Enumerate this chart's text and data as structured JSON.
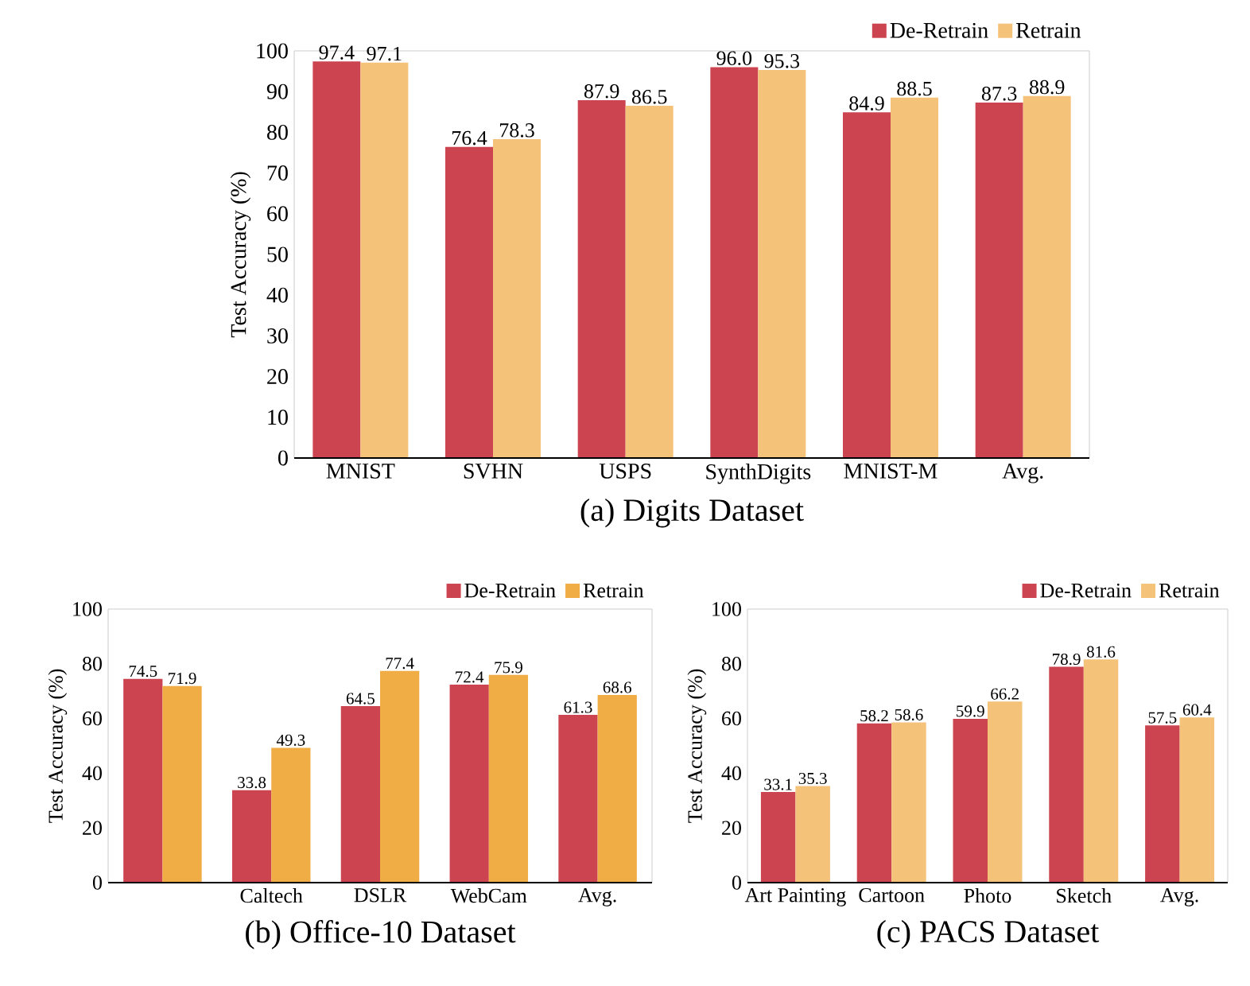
{
  "chart_data": [
    {
      "type": "bar",
      "title": "(a) Digits Dataset",
      "ylabel": "Test Accuracy (%)",
      "categories": [
        "MNIST",
        "SVHN",
        "USPS",
        "SynthDigits",
        "MNIST-M",
        "Avg."
      ],
      "series": [
        {
          "name": "De-Retrain",
          "color": "#cc4450",
          "values": [
            97.4,
            76.4,
            87.9,
            96.0,
            84.9,
            87.3
          ],
          "value_labels": [
            "97.4",
            "76.4",
            "87.9",
            "96.0",
            "84.9",
            "87.3"
          ]
        },
        {
          "name": "Retrain",
          "color": "#f5c27a",
          "values": [
            97.1,
            78.3,
            86.5,
            95.3,
            88.5,
            88.9
          ],
          "value_labels": [
            "97.1",
            "78.3",
            "86.5",
            "95.3",
            "88.5",
            "88.9"
          ]
        }
      ],
      "ylim": [
        0,
        100
      ],
      "yticks": [
        0,
        10,
        20,
        30,
        40,
        50,
        60,
        70,
        80,
        90,
        100
      ],
      "legend": "top right"
    },
    {
      "type": "bar",
      "title": "(b) Office-10 Dataset",
      "ylabel": "Test Accuracy (%)",
      "categories": [
        null,
        "Caltech",
        "DSLR",
        "WebCam",
        "Avg."
      ],
      "series": [
        {
          "name": "De-Retrain",
          "color": "#cc4450",
          "values": [
            74.5,
            33.8,
            64.5,
            72.4,
            61.3
          ]
        },
        {
          "name": "Retrain",
          "color": "#f0ad45",
          "values": [
            71.9,
            49.3,
            77.4,
            75.9,
            68.6
          ]
        }
      ],
      "ylim": [
        0,
        100
      ],
      "yticks": [
        0,
        20,
        40,
        60,
        80,
        100
      ],
      "data_labels": true,
      "legend": "top right"
    },
    {
      "type": "bar",
      "title": "(c) PACS Dataset",
      "ylabel": "Test Accuracy (%)",
      "categories": [
        "Art Painting",
        "Cartoon",
        "Photo",
        "Sketch",
        "Avg."
      ],
      "series": [
        {
          "name": "De-Retrain",
          "color": "#cc4450",
          "values": [
            33.1,
            58.2,
            59.9,
            78.9,
            57.5
          ]
        },
        {
          "name": "Retrain",
          "color": "#f5c27a",
          "values": [
            35.3,
            58.6,
            66.2,
            81.6,
            60.4
          ]
        }
      ],
      "ylim": [
        0,
        100
      ],
      "yticks": [
        0,
        20,
        40,
        60,
        80,
        100
      ],
      "data_labels": true,
      "legend": "top right"
    }
  ]
}
